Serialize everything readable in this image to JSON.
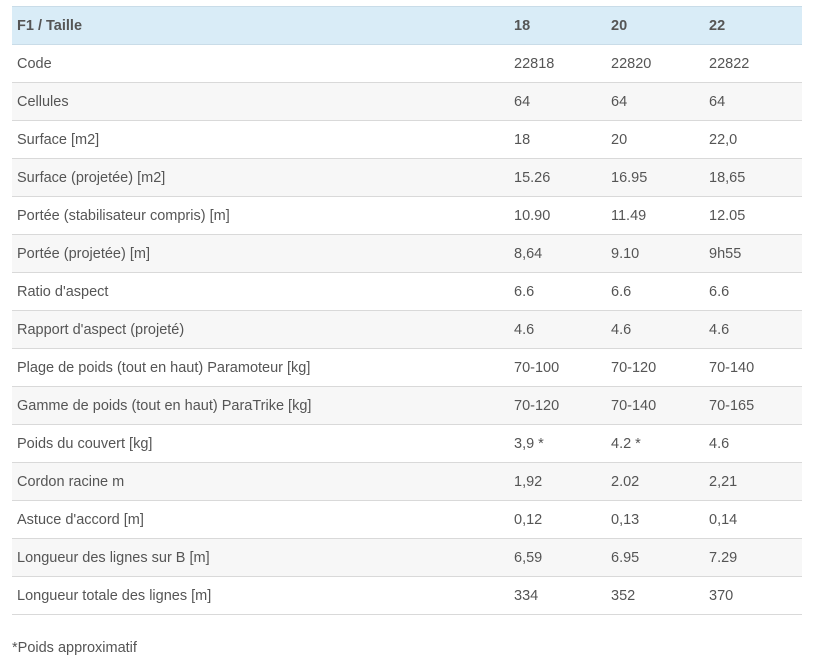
{
  "table": {
    "headers": [
      "F1 / Taille",
      "18",
      "20",
      "22"
    ],
    "rows": [
      [
        "Code",
        "22818",
        "22820",
        "22822"
      ],
      [
        "Cellules",
        "64",
        "64",
        "64"
      ],
      [
        "Surface [m2]",
        "18",
        "20",
        "22,0"
      ],
      [
        "Surface (projetée) [m2]",
        "15.26",
        "16.95",
        "18,65"
      ],
      [
        "Portée (stabilisateur compris) [m]",
        "10.90",
        "11.49",
        "12.05"
      ],
      [
        "Portée (projetée) [m]",
        "8,64",
        "9.10",
        "9h55"
      ],
      [
        "Ratio d'aspect",
        "6.6",
        "6.6",
        "6.6"
      ],
      [
        "Rapport d'aspect (projeté)",
        "4.6",
        "4.6",
        "4.6"
      ],
      [
        "Plage de poids (tout en haut) Paramoteur [kg]",
        "70-100",
        "70-120",
        "70-140"
      ],
      [
        "Gamme de poids (tout en haut) ParaTrike [kg]",
        "70-120",
        "70-140",
        "70-165"
      ],
      [
        "Poids du couvert [kg]",
        "3,9 *",
        "4.2 *",
        "4.6"
      ],
      [
        "Cordon racine m",
        "1,92",
        "2.02",
        "2,21"
      ],
      [
        "Astuce d'accord [m]",
        "0,12",
        "0,13",
        "0,14"
      ],
      [
        "Longueur des lignes sur B [m]",
        "6,59",
        "6.95",
        "7.29"
      ],
      [
        "Longueur totale des lignes [m]",
        "334",
        "352",
        "370"
      ]
    ]
  },
  "footnote": "*Poids approximatif",
  "colors": {
    "header_bg": "#d9ecf7",
    "row_alt_bg": "#f7f7f7",
    "text": "#555555",
    "border": "#d9d9d9"
  }
}
